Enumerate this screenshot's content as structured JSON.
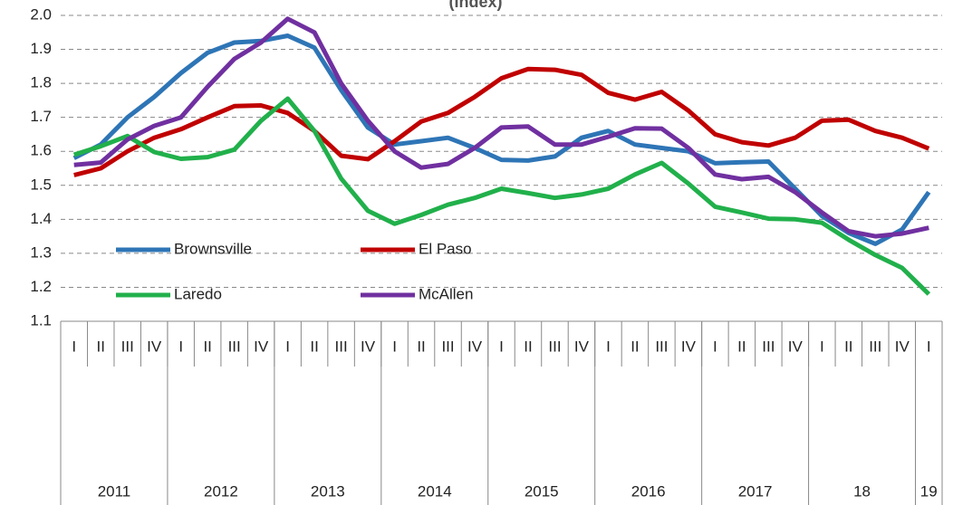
{
  "chart_data": {
    "type": "line",
    "title": "(Index)",
    "categories": [
      "I",
      "II",
      "III",
      "IV",
      "I",
      "II",
      "III",
      "IV",
      "I",
      "II",
      "III",
      "IV",
      "I",
      "II",
      "III",
      "IV",
      "I",
      "II",
      "III",
      "IV",
      "I",
      "II",
      "III",
      "IV",
      "I",
      "II",
      "III",
      "IV",
      "I",
      "II",
      "III",
      "IV",
      "I"
    ],
    "years": [
      "2011",
      "2012",
      "2013",
      "2014",
      "2015",
      "2016",
      "2017",
      "18",
      "19"
    ],
    "ylim": [
      1.1,
      2.0
    ],
    "yticks": [
      1.1,
      1.2,
      1.3,
      1.4,
      1.5,
      1.6,
      1.7,
      1.8,
      1.9,
      {
        "value": 2.0,
        "label": "2.0"
      }
    ],
    "grid": true,
    "series": [
      {
        "name": "Brownsville",
        "color": "#2e75b6",
        "values": [
          1.58,
          1.62,
          1.7,
          1.76,
          1.83,
          1.89,
          1.92,
          1.925,
          1.94,
          1.905,
          1.78,
          1.67,
          1.62,
          1.63,
          1.64,
          1.61,
          1.575,
          1.573,
          1.585,
          1.64,
          1.66,
          1.62,
          1.61,
          1.6,
          1.565,
          1.568,
          1.57,
          1.49,
          1.41,
          1.36,
          1.328,
          1.37,
          1.48
        ]
      },
      {
        "name": "El Paso",
        "color": "#c00000",
        "values": [
          1.53,
          1.55,
          1.6,
          1.64,
          1.665,
          1.7,
          1.733,
          1.735,
          1.713,
          1.66,
          1.587,
          1.577,
          1.63,
          1.688,
          1.713,
          1.76,
          1.815,
          1.842,
          1.84,
          1.825,
          1.772,
          1.752,
          1.775,
          1.72,
          1.65,
          1.627,
          1.617,
          1.64,
          1.69,
          1.693,
          1.66,
          1.64,
          1.608
        ]
      },
      {
        "name": "Laredo",
        "color": "#21b04b",
        "values": [
          1.59,
          1.615,
          1.645,
          1.598,
          1.578,
          1.583,
          1.605,
          1.69,
          1.755,
          1.66,
          1.52,
          1.425,
          1.387,
          1.413,
          1.443,
          1.463,
          1.49,
          1.477,
          1.463,
          1.473,
          1.49,
          1.532,
          1.566,
          1.505,
          1.437,
          1.42,
          1.402,
          1.4,
          1.39,
          1.34,
          1.295,
          1.257,
          1.18
        ]
      },
      {
        "name": "McAllen",
        "color": "#7030a0",
        "values": [
          1.56,
          1.567,
          1.635,
          1.675,
          1.7,
          1.79,
          1.872,
          1.92,
          1.99,
          1.95,
          1.8,
          1.69,
          1.6,
          1.552,
          1.563,
          1.61,
          1.67,
          1.673,
          1.62,
          1.62,
          1.643,
          1.668,
          1.667,
          1.61,
          1.532,
          1.518,
          1.525,
          1.48,
          1.42,
          1.365,
          1.35,
          1.358,
          1.375
        ]
      }
    ]
  }
}
